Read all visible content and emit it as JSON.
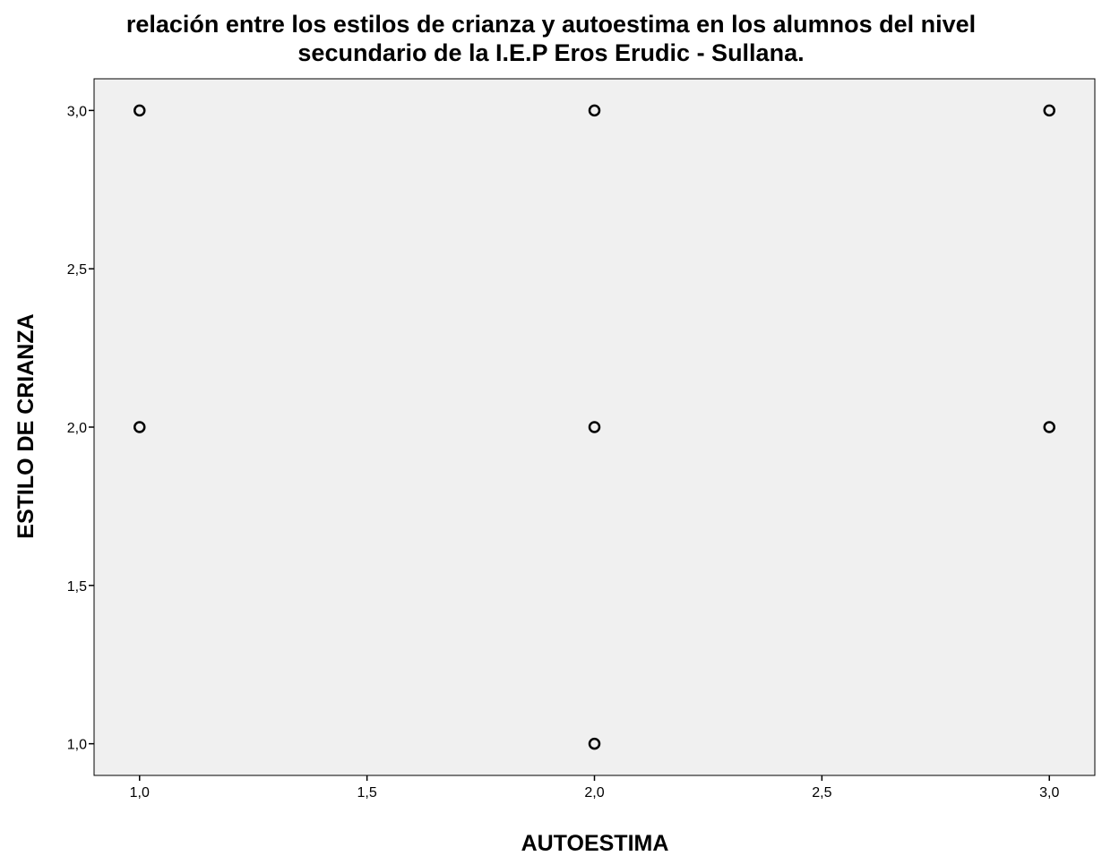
{
  "chart_data": {
    "type": "scatter",
    "title_lines": [
      "relación entre los estilos de crianza y autoestima en los alumnos del nivel",
      "secundario de la I.E.P Eros Erudic - Sullana."
    ],
    "xlabel": "AUTOESTIMA",
    "ylabel": "ESTILO DE CRIANZA",
    "xlim": [
      0.9,
      3.1
    ],
    "ylim": [
      0.9,
      3.1
    ],
    "x_ticks": [
      {
        "value": 1.0,
        "label": "1,0"
      },
      {
        "value": 1.5,
        "label": "1,5"
      },
      {
        "value": 2.0,
        "label": "2,0"
      },
      {
        "value": 2.5,
        "label": "2,5"
      },
      {
        "value": 3.0,
        "label": "3,0"
      }
    ],
    "y_ticks": [
      {
        "value": 1.0,
        "label": "1,0"
      },
      {
        "value": 1.5,
        "label": "1,5"
      },
      {
        "value": 2.0,
        "label": "2,0"
      },
      {
        "value": 2.5,
        "label": "2,5"
      },
      {
        "value": 3.0,
        "label": "3,0"
      }
    ],
    "grid": false,
    "points": [
      {
        "x": 1.0,
        "y": 3.0
      },
      {
        "x": 2.0,
        "y": 3.0
      },
      {
        "x": 3.0,
        "y": 3.0
      },
      {
        "x": 1.0,
        "y": 2.0
      },
      {
        "x": 2.0,
        "y": 2.0
      },
      {
        "x": 3.0,
        "y": 2.0
      },
      {
        "x": 2.0,
        "y": 1.0
      }
    ],
    "colors": {
      "plot_background": "#f0f0f0",
      "plot_border": "#000000",
      "marker_stroke": "#000000"
    }
  }
}
